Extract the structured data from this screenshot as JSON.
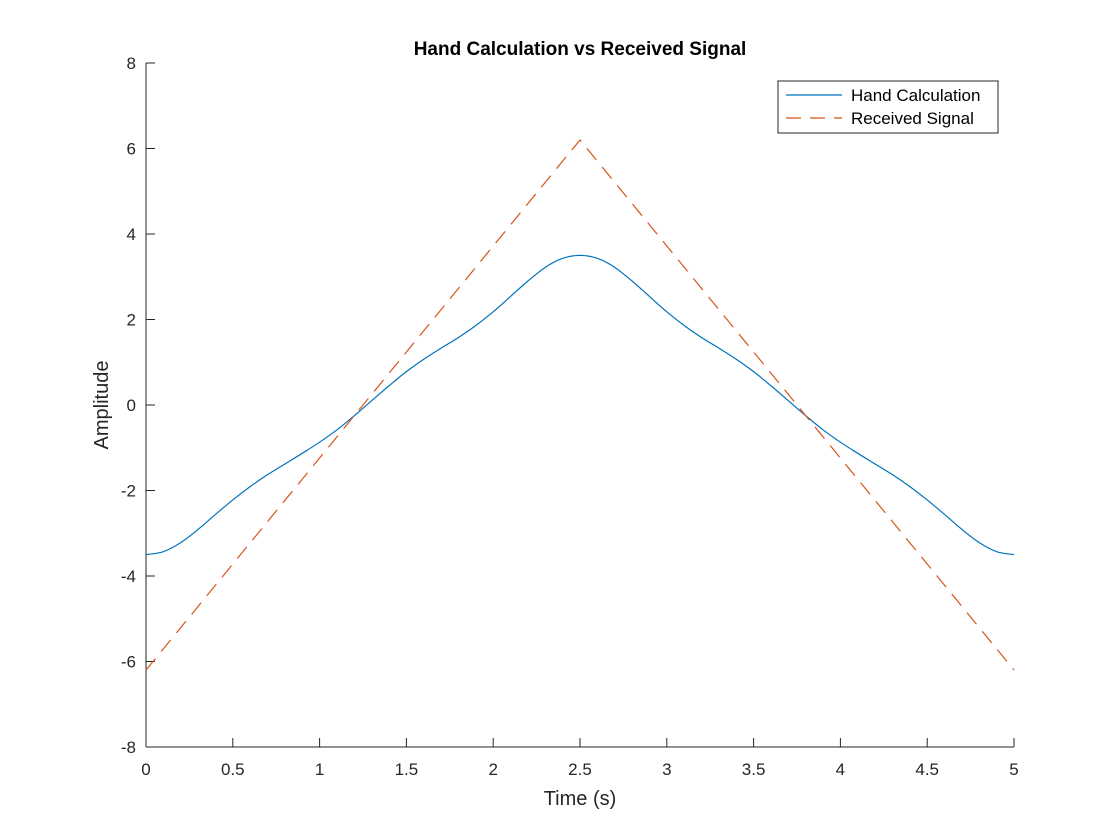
{
  "chart_data": {
    "type": "line",
    "title": "Hand Calculation vs Received Signal",
    "xlabel": "Time (s)",
    "ylabel": "Amplitude",
    "xlim": [
      0,
      5
    ],
    "ylim": [
      -8,
      8
    ],
    "xticks": [
      0,
      0.5,
      1,
      1.5,
      2,
      2.5,
      3,
      3.5,
      4,
      4.5,
      5
    ],
    "xtick_labels": [
      "0",
      "0.5",
      "1",
      "1.5",
      "2",
      "2.5",
      "3",
      "3.5",
      "4",
      "4.5",
      "5"
    ],
    "yticks": [
      -8,
      -6,
      -4,
      -2,
      0,
      2,
      4,
      6,
      8
    ],
    "ytick_labels": [
      "-8",
      "-6",
      "-4",
      "-2",
      "0",
      "2",
      "4",
      "6",
      "8"
    ],
    "grid": false,
    "legend_position": "top-right",
    "series": [
      {
        "name": "Hand Calculation",
        "color": "#0072BD",
        "style": "solid",
        "x": [
          0,
          0.1,
          0.2,
          0.3,
          0.4,
          0.5,
          0.6,
          0.7,
          0.8,
          0.9,
          1.0,
          1.1,
          1.2,
          1.3,
          1.4,
          1.5,
          1.6,
          1.7,
          1.8,
          1.9,
          2.0,
          2.1,
          2.2,
          2.3,
          2.4,
          2.5,
          2.6,
          2.7,
          2.8,
          2.9,
          3.0,
          3.1,
          3.2,
          3.3,
          3.4,
          3.5,
          3.6,
          3.7,
          3.8,
          3.9,
          4.0,
          4.1,
          4.2,
          4.3,
          4.4,
          4.5,
          4.6,
          4.7,
          4.8,
          4.9,
          5.0
        ],
        "y": [
          -3.5,
          -3.43,
          -3.22,
          -2.91,
          -2.56,
          -2.22,
          -1.91,
          -1.63,
          -1.38,
          -1.13,
          -0.87,
          -0.58,
          -0.25,
          0.1,
          0.45,
          0.78,
          1.07,
          1.33,
          1.58,
          1.86,
          2.18,
          2.54,
          2.9,
          3.22,
          3.43,
          3.5,
          3.43,
          3.22,
          2.9,
          2.54,
          2.18,
          1.86,
          1.58,
          1.33,
          1.07,
          0.78,
          0.45,
          0.1,
          -0.25,
          -0.58,
          -0.87,
          -1.13,
          -1.38,
          -1.63,
          -1.91,
          -2.22,
          -2.56,
          -2.91,
          -3.22,
          -3.43,
          -3.5
        ]
      },
      {
        "name": "Received Signal",
        "color": "#D95319",
        "style": "dashed",
        "x": [
          0,
          2.5,
          5
        ],
        "y": [
          -6.2,
          6.2,
          -6.2
        ]
      }
    ]
  }
}
